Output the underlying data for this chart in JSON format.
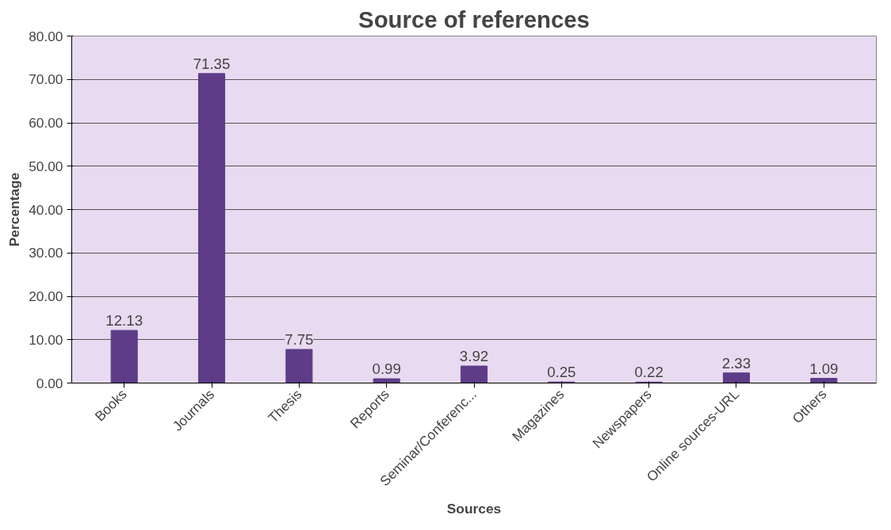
{
  "chart_data": {
    "type": "bar",
    "title": "Source of references",
    "xlabel": "Sources",
    "ylabel": "Percentage",
    "categories": [
      "Books",
      "Journals",
      "Thesis",
      "Reports",
      "Seminar/Conferenc...",
      "Magazines",
      "Newspapers",
      "Online sources-URL",
      "Others"
    ],
    "values": [
      12.13,
      71.35,
      7.75,
      0.99,
      3.92,
      0.25,
      0.22,
      2.33,
      1.09
    ],
    "color": "#5e3c88",
    "ylim": [
      0,
      80
    ],
    "yticks": [
      {
        "value": 0,
        "label": "0.00"
      },
      {
        "value": 10,
        "label": "10.00"
      },
      {
        "value": 20,
        "label": "20.00"
      },
      {
        "value": 30,
        "label": "30.00"
      },
      {
        "value": 40,
        "label": "40.00"
      },
      {
        "value": 50,
        "label": "50.00"
      },
      {
        "value": 60,
        "label": "60.00"
      },
      {
        "value": 70,
        "label": "70.00"
      },
      {
        "value": 80,
        "label": "80.00"
      }
    ],
    "grid": "y",
    "data_labels": true
  }
}
